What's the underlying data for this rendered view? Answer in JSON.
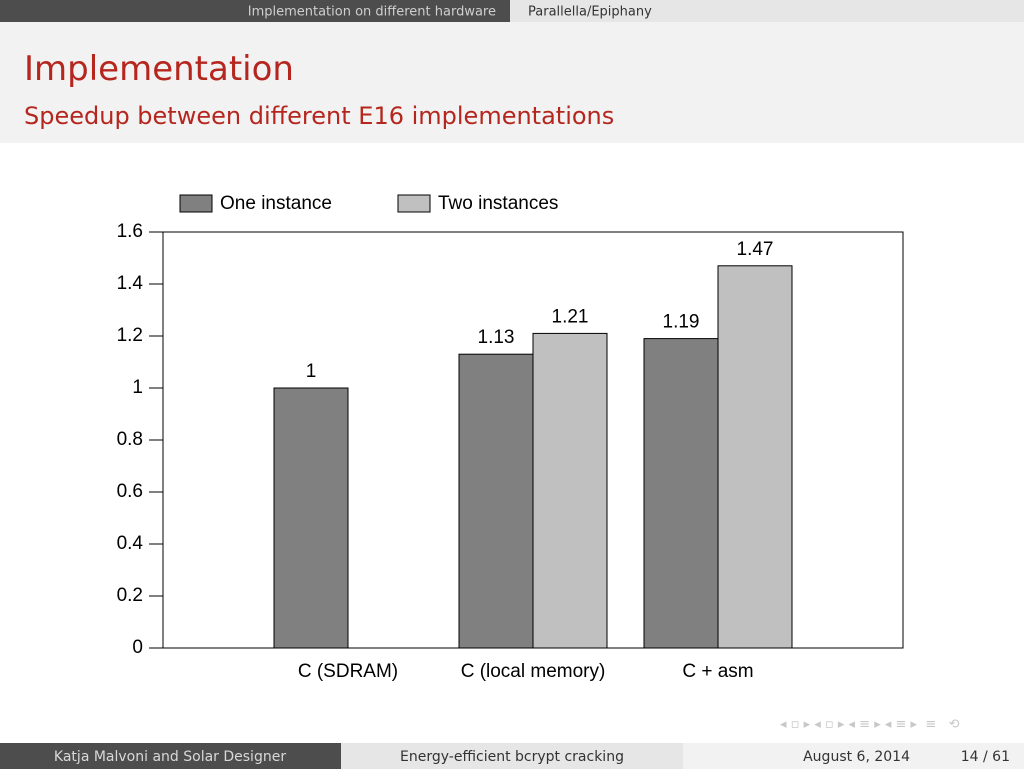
{
  "header": {
    "section": "Implementation on different hardware",
    "subsection": "Parallella/Epiphany"
  },
  "slide": {
    "title": "Implementation",
    "subtitle": "Speedup between different E16 implementations"
  },
  "footer": {
    "authors": "Katja Malvoni and Solar Designer",
    "talk": "Energy-efficient bcrypt cracking",
    "date": "August 6, 2014",
    "page": "14 / 61"
  },
  "chart_data": {
    "type": "bar",
    "categories": [
      "C (SDRAM)",
      "C (local memory)",
      "C + asm"
    ],
    "series": [
      {
        "name": "One instance",
        "color": "#808080",
        "values": [
          1,
          1.13,
          1.19
        ]
      },
      {
        "name": "Two instances",
        "color": "#c0c0c0",
        "values": [
          null,
          1.21,
          1.47
        ]
      }
    ],
    "ylim": [
      0,
      1.6
    ],
    "yticks": [
      0,
      0.2,
      0.4,
      0.6,
      0.8,
      1,
      1.2,
      1.4,
      1.6
    ]
  }
}
